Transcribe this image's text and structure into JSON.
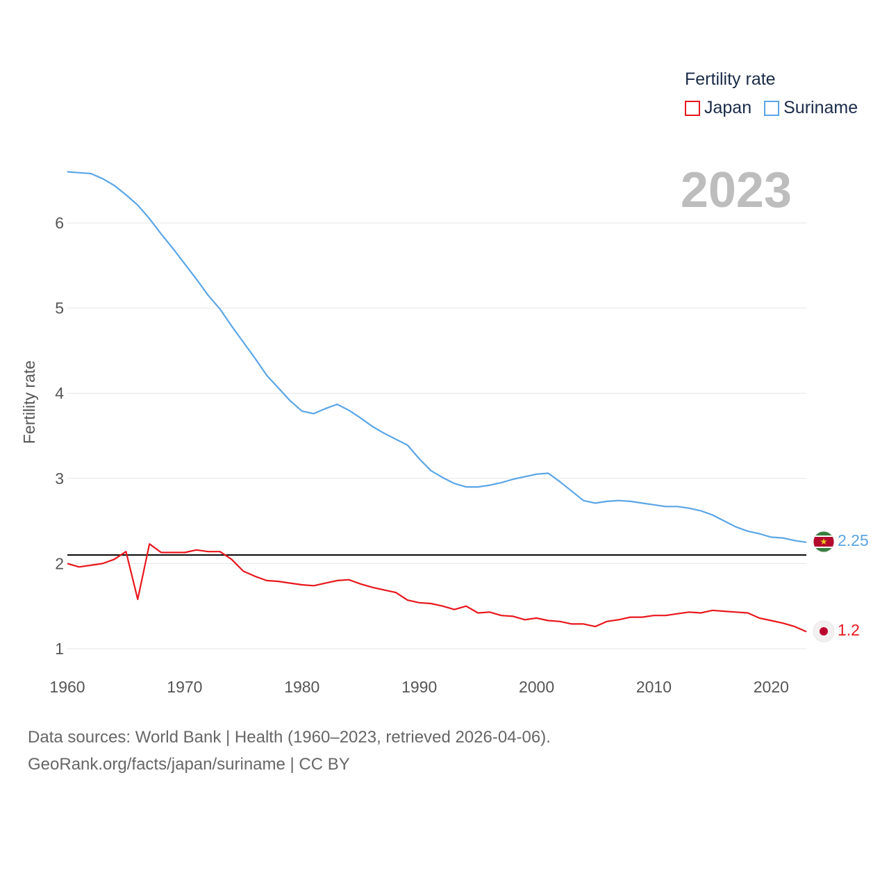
{
  "chart_data": {
    "type": "line",
    "title": "",
    "ylabel": "Fertility rate",
    "xlabel": "",
    "xlim": [
      1960,
      2023
    ],
    "ylim": [
      0.8,
      6.8
    ],
    "x_ticks": [
      1960,
      1970,
      1980,
      1990,
      2000,
      2010,
      2020
    ],
    "y_ticks": [
      1,
      2,
      3,
      4,
      5,
      6
    ],
    "grid": true,
    "year_label": "2023",
    "legend": {
      "title": "Fertility rate",
      "position": "top-right"
    },
    "reference_line": {
      "value": 2.1,
      "color": "#000000"
    },
    "x": [
      1960,
      1961,
      1962,
      1963,
      1964,
      1965,
      1966,
      1967,
      1968,
      1969,
      1970,
      1971,
      1972,
      1973,
      1974,
      1975,
      1976,
      1977,
      1978,
      1979,
      1980,
      1981,
      1982,
      1983,
      1984,
      1985,
      1986,
      1987,
      1988,
      1989,
      1990,
      1991,
      1992,
      1993,
      1994,
      1995,
      1996,
      1997,
      1998,
      1999,
      2000,
      2001,
      2002,
      2003,
      2004,
      2005,
      2006,
      2007,
      2008,
      2009,
      2010,
      2011,
      2012,
      2013,
      2014,
      2015,
      2016,
      2017,
      2018,
      2019,
      2020,
      2021,
      2022,
      2023
    ],
    "series": [
      {
        "name": "Japan",
        "color": "#e8161c",
        "end_label": "1.2",
        "marker_icon": "japan-flag-icon",
        "values": [
          2.0,
          1.96,
          1.98,
          2.0,
          2.05,
          2.14,
          1.58,
          2.23,
          2.13,
          2.13,
          2.13,
          2.16,
          2.14,
          2.14,
          2.05,
          1.91,
          1.85,
          1.8,
          1.79,
          1.77,
          1.75,
          1.74,
          1.77,
          1.8,
          1.81,
          1.76,
          1.72,
          1.69,
          1.66,
          1.57,
          1.54,
          1.53,
          1.5,
          1.46,
          1.5,
          1.42,
          1.43,
          1.39,
          1.38,
          1.34,
          1.36,
          1.33,
          1.32,
          1.29,
          1.29,
          1.26,
          1.32,
          1.34,
          1.37,
          1.37,
          1.39,
          1.39,
          1.41,
          1.43,
          1.42,
          1.45,
          1.44,
          1.43,
          1.42,
          1.36,
          1.33,
          1.3,
          1.26,
          1.2
        ]
      },
      {
        "name": "Suriname",
        "color": "#5aa5e6",
        "end_label": "2.25",
        "marker_icon": "suriname-flag-icon",
        "values": [
          6.6,
          6.59,
          6.58,
          6.52,
          6.44,
          6.33,
          6.21,
          6.05,
          5.87,
          5.7,
          5.52,
          5.34,
          5.15,
          4.99,
          4.79,
          4.6,
          4.41,
          4.21,
          4.06,
          3.91,
          3.79,
          3.76,
          3.82,
          3.87,
          3.8,
          3.71,
          3.61,
          3.53,
          3.46,
          3.39,
          3.23,
          3.09,
          3.01,
          2.94,
          2.9,
          2.9,
          2.92,
          2.95,
          2.99,
          3.02,
          3.05,
          3.06,
          2.96,
          2.85,
          2.74,
          2.71,
          2.73,
          2.74,
          2.73,
          2.71,
          2.69,
          2.67,
          2.67,
          2.65,
          2.62,
          2.57,
          2.5,
          2.43,
          2.38,
          2.35,
          2.31,
          2.3,
          2.27,
          2.25
        ]
      }
    ]
  },
  "footer": {
    "line1": "Data sources: World Bank | Health (1960–2023, retrieved 2026-04-06).",
    "line2": "GeoRank.org/facts/japan/suriname | CC BY"
  }
}
